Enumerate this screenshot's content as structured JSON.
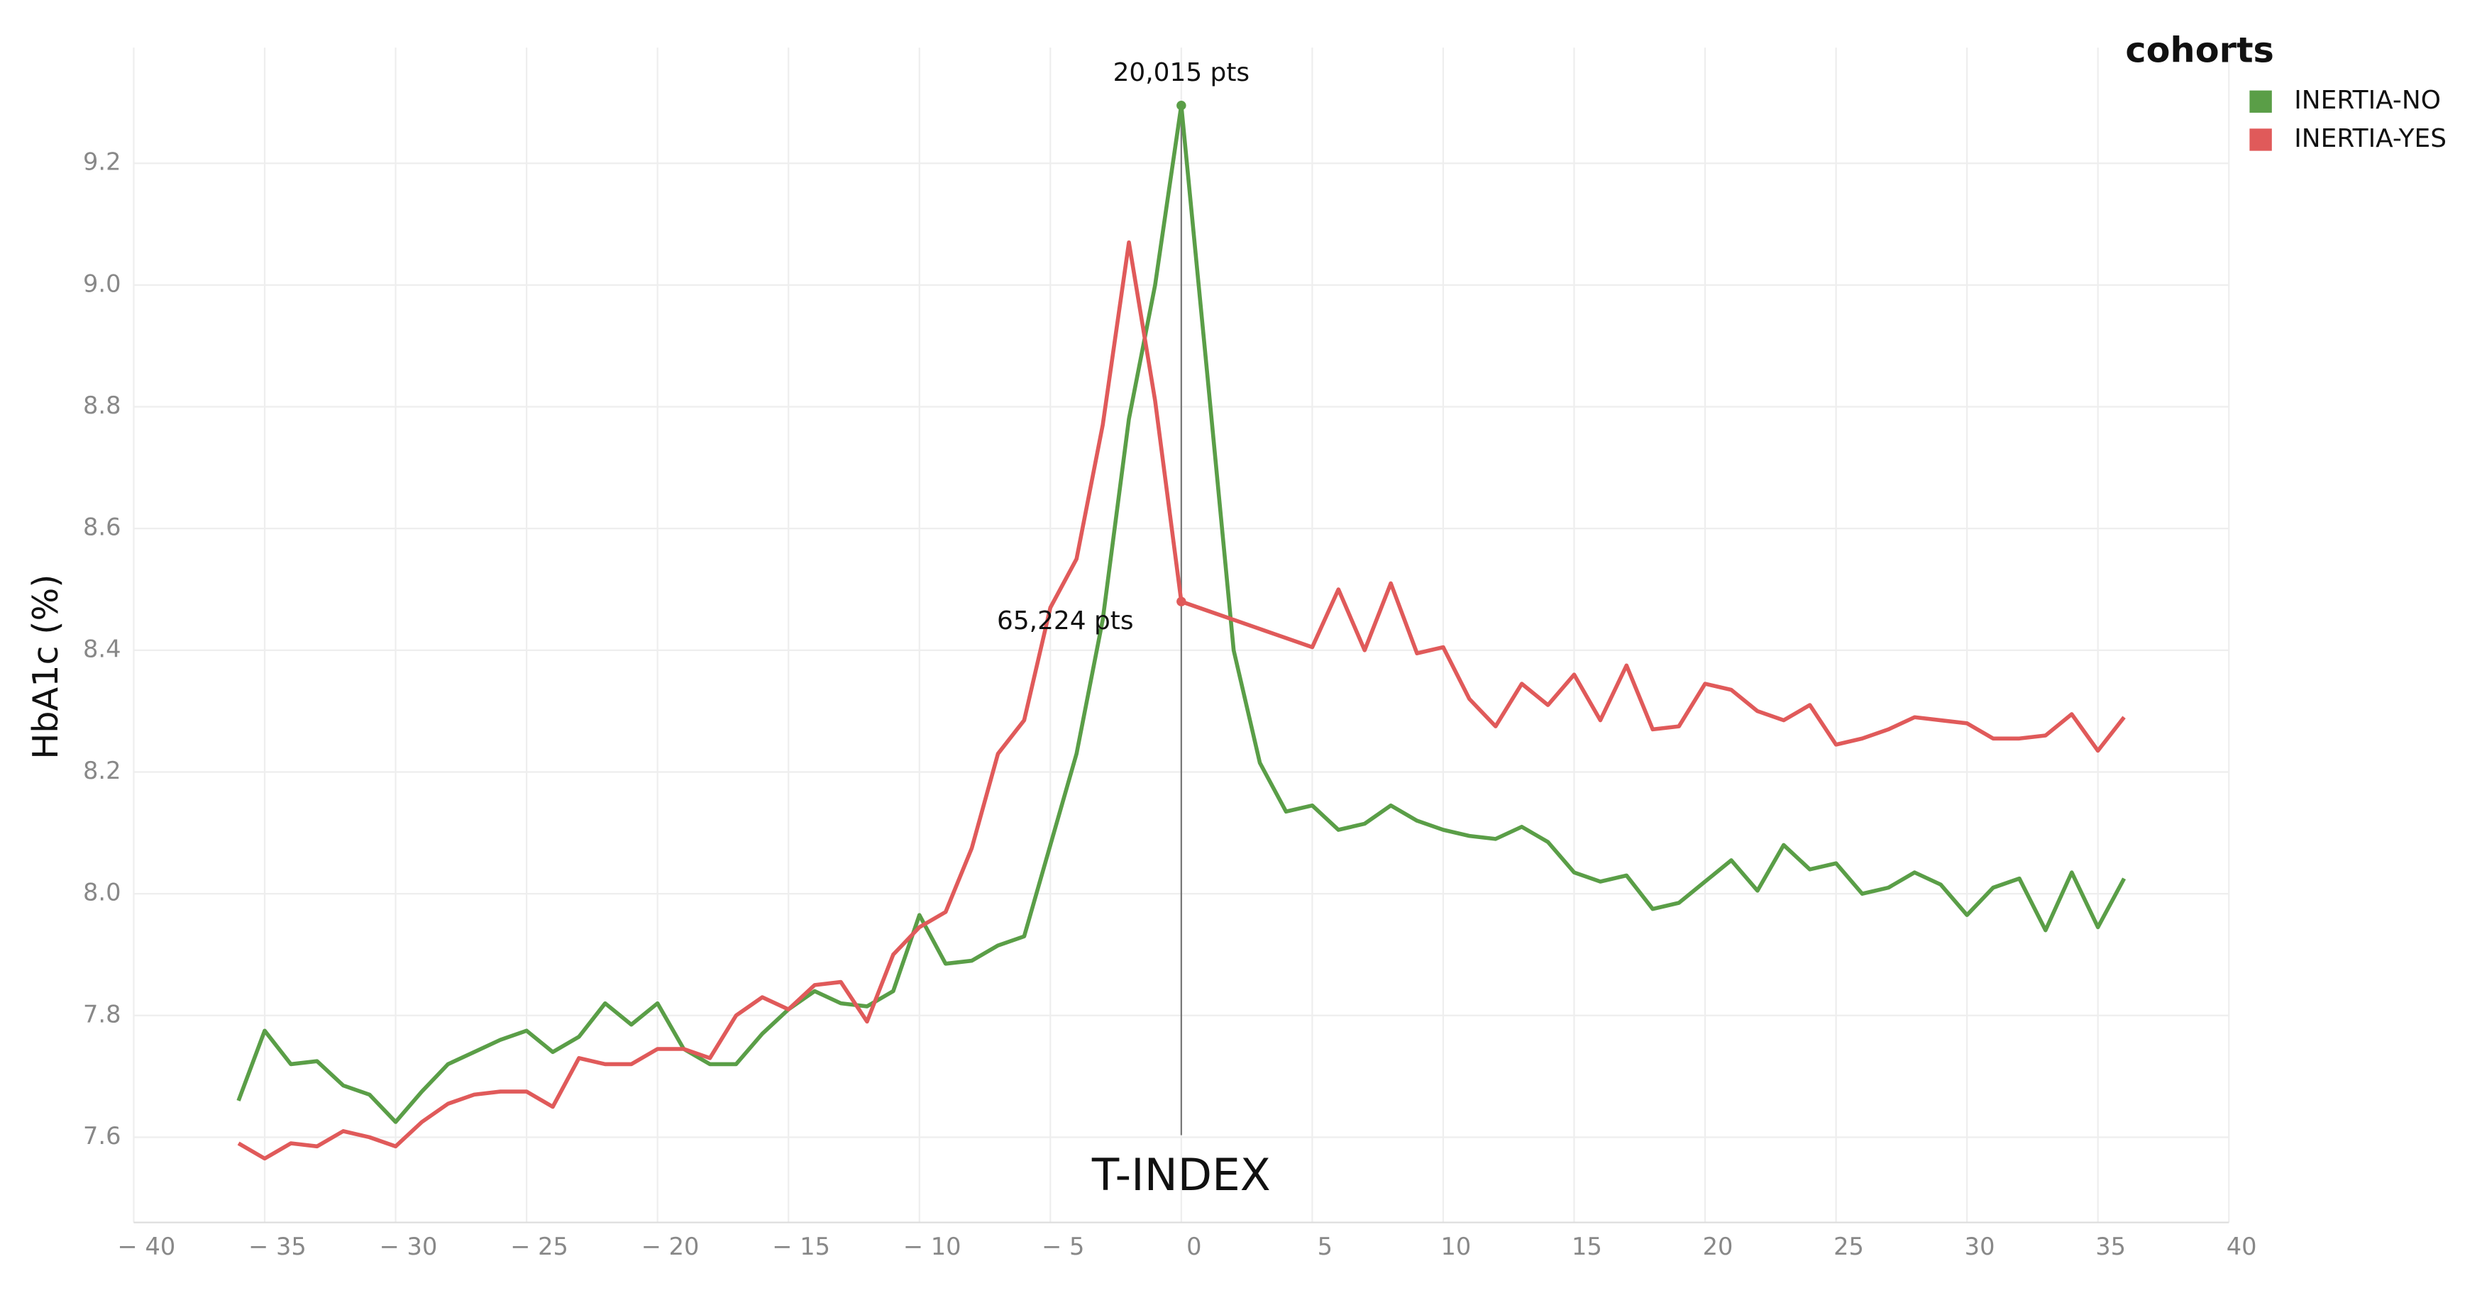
{
  "chart_data": {
    "type": "line",
    "y_label": "HbA1c (%)",
    "x": [
      -36,
      -35,
      -34,
      -33,
      -32,
      -31,
      -30,
      -29,
      -28,
      -27,
      -26,
      -25,
      -24,
      -23,
      -22,
      -21,
      -20,
      -19,
      -18,
      -17,
      -16,
      -15,
      -14,
      -13,
      -12,
      -11,
      -10,
      -9,
      -8,
      -7,
      -6,
      -5,
      -4,
      -3,
      -2,
      -1,
      0,
      1,
      2,
      3,
      4,
      5,
      6,
      7,
      8,
      9,
      10,
      11,
      12,
      13,
      14,
      15,
      16,
      17,
      18,
      19,
      20,
      21,
      22,
      23,
      24,
      25,
      26,
      27,
      28,
      29,
      30,
      31,
      32,
      33,
      34,
      35,
      36
    ],
    "series": [
      {
        "name": "INERTIA-NO",
        "color": "#5a9e47",
        "values": [
          7.66,
          7.775,
          7.72,
          7.725,
          7.685,
          7.67,
          7.625,
          7.675,
          7.72,
          7.74,
          7.76,
          7.775,
          7.74,
          7.765,
          7.82,
          7.785,
          7.82,
          7.745,
          7.72,
          7.72,
          7.77,
          7.81,
          7.84,
          7.82,
          7.815,
          7.84,
          7.965,
          7.885,
          7.89,
          7.915,
          7.93,
          8.08,
          8.23,
          8.45,
          8.78,
          9.0,
          9.295,
          8.85,
          8.4,
          8.215,
          8.135,
          8.145,
          8.105,
          8.115,
          8.145,
          8.12,
          8.105,
          8.095,
          8.09,
          8.11,
          8.085,
          8.035,
          8.02,
          8.03,
          7.975,
          7.985,
          8.02,
          8.055,
          8.005,
          8.08,
          8.04,
          8.05,
          8.0,
          8.01,
          8.035,
          8.015,
          7.965,
          8.01,
          8.025,
          7.94,
          8.035,
          7.945,
          8.025
        ]
      },
      {
        "name": "INERTIA-YES",
        "color": "#e05a5a",
        "values": [
          7.59,
          7.565,
          7.59,
          7.585,
          7.61,
          7.6,
          7.585,
          7.625,
          7.655,
          7.67,
          7.675,
          7.675,
          7.65,
          7.73,
          7.72,
          7.72,
          7.745,
          7.745,
          7.73,
          7.8,
          7.83,
          7.81,
          7.85,
          7.855,
          7.79,
          7.9,
          7.945,
          7.97,
          8.075,
          8.23,
          8.285,
          8.47,
          8.55,
          8.77,
          9.07,
          8.81,
          8.48,
          8.465,
          8.45,
          8.435,
          8.42,
          8.405,
          8.5,
          8.4,
          8.51,
          8.395,
          8.405,
          8.32,
          8.275,
          8.345,
          8.31,
          8.36,
          8.285,
          8.375,
          8.27,
          8.275,
          8.345,
          8.335,
          8.3,
          8.285,
          8.31,
          8.245,
          8.255,
          8.27,
          8.29,
          8.285,
          8.28,
          8.255,
          8.255,
          8.26,
          8.295,
          8.235,
          8.29
        ]
      }
    ],
    "xlim": [
      -40,
      40
    ],
    "xticks": [
      {
        "value": -40,
        "label": "− 40"
      },
      {
        "value": -35,
        "label": "− 35"
      },
      {
        "value": -30,
        "label": "− 30"
      },
      {
        "value": -25,
        "label": "− 25"
      },
      {
        "value": -20,
        "label": "− 20"
      },
      {
        "value": -15,
        "label": "− 15"
      },
      {
        "value": -10,
        "label": "− 10"
      },
      {
        "value": -5,
        "label": "− 5"
      },
      0,
      5,
      10,
      15,
      20,
      25,
      30,
      35,
      40
    ],
    "ylim": [
      7.46,
      9.39
    ],
    "yticks": [
      7.6,
      7.8,
      {
        "value": 8,
        "label": "8.0"
      },
      8.2,
      8.4,
      8.6,
      8.8,
      {
        "value": 9,
        "label": "9.0"
      },
      9.2
    ],
    "grid": true,
    "legend_title": "cohorts",
    "legend_position": "top-right",
    "reference_line": {
      "x": 0,
      "label": "T-INDEX"
    },
    "annotations": [
      {
        "text": "20,015 pts",
        "x": 0,
        "y": 9.295
      },
      {
        "text": "65,224 pts",
        "x": 0,
        "y": 8.48
      }
    ]
  }
}
